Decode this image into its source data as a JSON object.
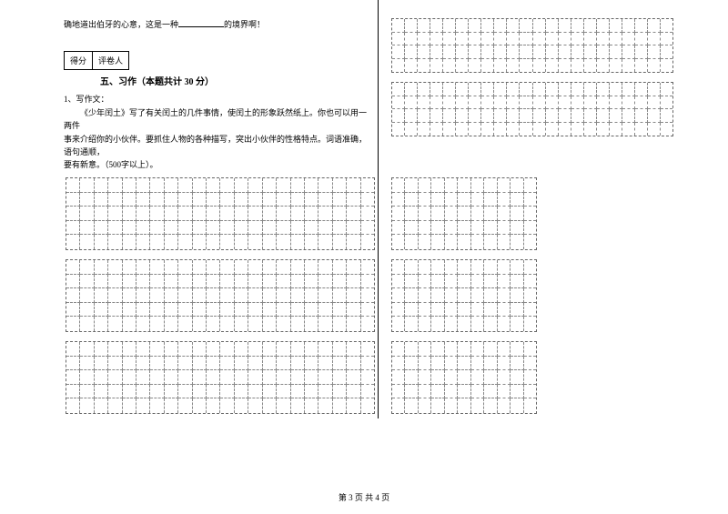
{
  "topLine": {
    "pre": "确地道出伯牙的心意，这是一种",
    "post": "的境界啊！"
  },
  "scoreBox": {
    "col1": "得分",
    "col2": "评卷人"
  },
  "section": {
    "title": "五、习作（本题共计 30 分）"
  },
  "essay": {
    "line1": "1、写作文：",
    "line2": "《少年闰土》写了有关闰土的几件事情，使闰土的形象跃然纸上。你也可以用一两件",
    "line3": "事来介绍你的小伙伴。要抓住人物的各种描写，突出小伙伴的性格特点。词语准确，语句通顺，",
    "line4": "要有新意。（500字以上）。"
  },
  "grids": {
    "topRight": {
      "rows": 8,
      "cols": 22,
      "sections": [
        4,
        4
      ]
    },
    "bottomLeft": {
      "rows": 15,
      "cols": 22,
      "sections": [
        5,
        5,
        5
      ]
    },
    "bottomRight": {
      "rows": 15,
      "cols": 11,
      "sections": [
        5,
        5,
        5
      ]
    }
  },
  "footer": {
    "text": "第 3 页 共 4 页"
  },
  "colors": {
    "text": "#000000",
    "grid_border": "#888888",
    "background": "#ffffff"
  },
  "typography": {
    "body_fontsize": 9,
    "title_fontsize": 10,
    "font_family": "SimSun"
  }
}
